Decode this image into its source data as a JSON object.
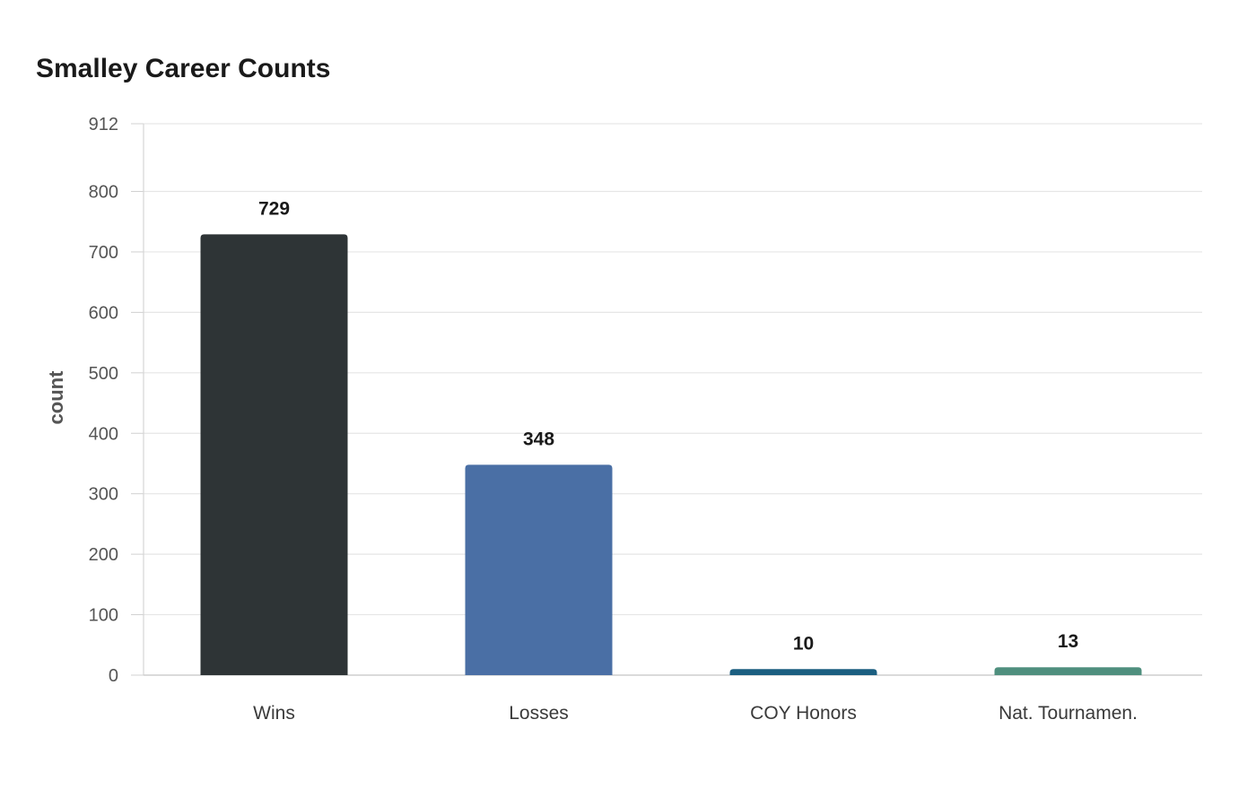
{
  "chart_data": {
    "type": "bar",
    "title": "Smalley Career Counts",
    "xlabel": "",
    "ylabel": "count",
    "categories": [
      "Wins",
      "Losses",
      "COY Honors",
      "Nat. Tournamen."
    ],
    "values": [
      729,
      348,
      10,
      13
    ],
    "value_labels": [
      "729",
      "348",
      "10",
      "13"
    ],
    "colors": [
      "#2e3436",
      "#4a6fa5",
      "#1b5e80",
      "#4f8f7e"
    ],
    "ylim": [
      0,
      912
    ],
    "yticks": [
      0,
      100,
      200,
      300,
      400,
      500,
      600,
      700,
      800,
      912
    ],
    "ytick_labels": [
      "0",
      "100",
      "200",
      "300",
      "400",
      "500",
      "600",
      "700",
      "800",
      "912"
    ],
    "grid": true,
    "legend": "none"
  }
}
